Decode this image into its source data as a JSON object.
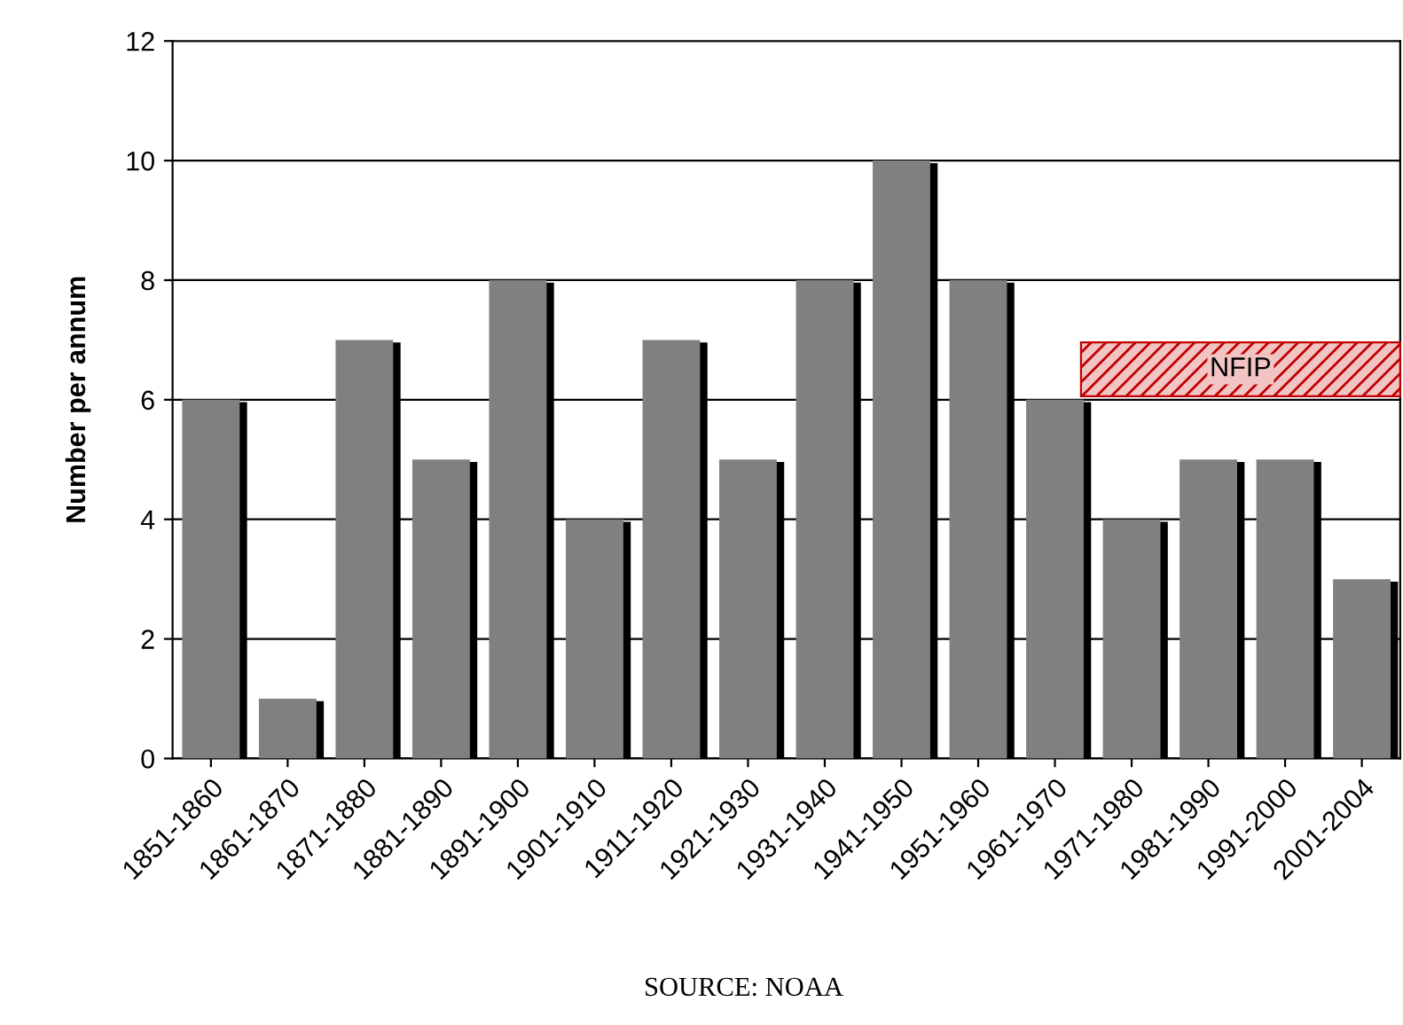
{
  "chart_data": {
    "type": "bar",
    "ylabel": "Number per annum",
    "categories": [
      "1851-1860",
      "1861-1870",
      "1871-1880",
      "1881-1890",
      "1891-1900",
      "1901-1910",
      "1911-1920",
      "1921-1930",
      "1931-1940",
      "1941-1950",
      "1951-1960",
      "1961-1970",
      "1971-1980",
      "1981-1990",
      "1991-2000",
      "2001-2004"
    ],
    "values": [
      6,
      1,
      7,
      5,
      8,
      4,
      7,
      5,
      8,
      10,
      8,
      6,
      4,
      5,
      5,
      3
    ],
    "color": "#808080",
    "ylim": [
      0,
      12
    ],
    "yticks": [
      0,
      2,
      4,
      6,
      8,
      10,
      12
    ],
    "grid": "y",
    "annotations": [
      "NFIP",
      "SOURCE: NOAA"
    ]
  }
}
